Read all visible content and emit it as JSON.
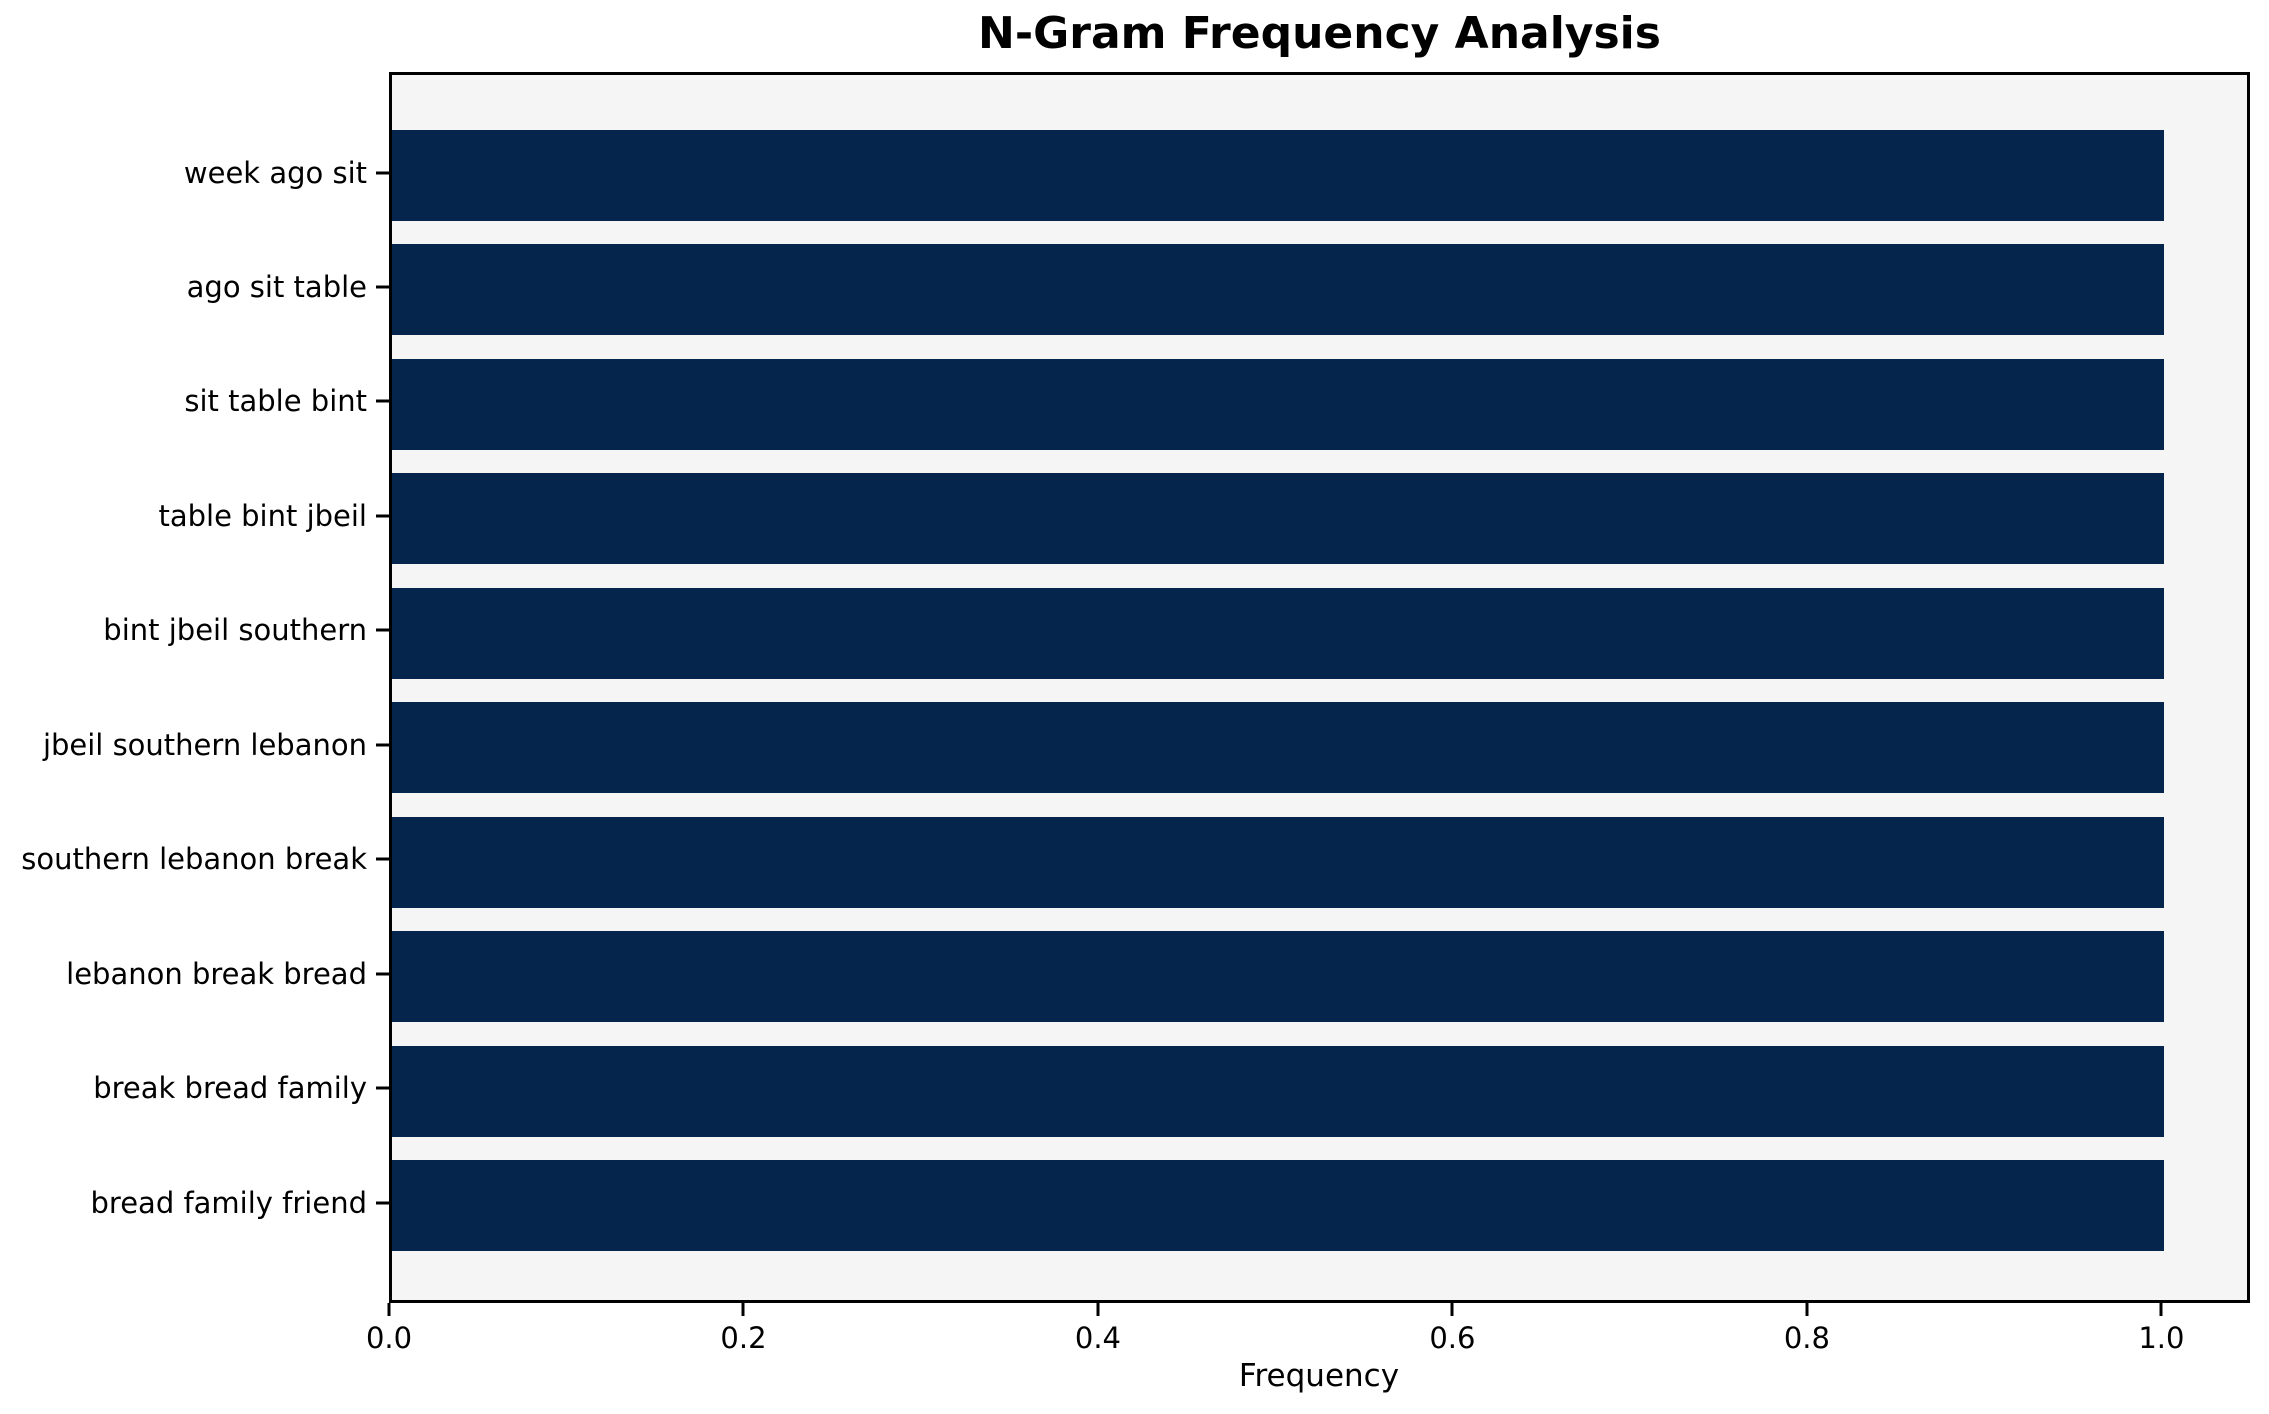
{
  "chart_data": {
    "type": "bar",
    "orientation": "horizontal",
    "title": "N-Gram Frequency Analysis",
    "xlabel": "Frequency",
    "ylabel": "",
    "categories": [
      "week ago sit",
      "ago sit table",
      "sit table bint",
      "table bint jbeil",
      "bint jbeil southern",
      "jbeil southern lebanon",
      "southern lebanon break",
      "lebanon break bread",
      "break bread family",
      "bread family friend"
    ],
    "values": [
      1.0,
      1.0,
      1.0,
      1.0,
      1.0,
      1.0,
      1.0,
      1.0,
      1.0,
      1.0
    ],
    "xlim": [
      0,
      1.05
    ],
    "xticks": [
      {
        "value": 0.0,
        "label": "0.0"
      },
      {
        "value": 0.2,
        "label": "0.2"
      },
      {
        "value": 0.4,
        "label": "0.4"
      },
      {
        "value": 0.6,
        "label": "0.6"
      },
      {
        "value": 0.8,
        "label": "0.8"
      },
      {
        "value": 1.0,
        "label": "1.0"
      }
    ],
    "grid": false,
    "legend": null,
    "colors": {
      "bar": "#05254d",
      "plot_background": "#f5f5f5",
      "figure_background": "#ffffff",
      "text": "#000000"
    }
  }
}
